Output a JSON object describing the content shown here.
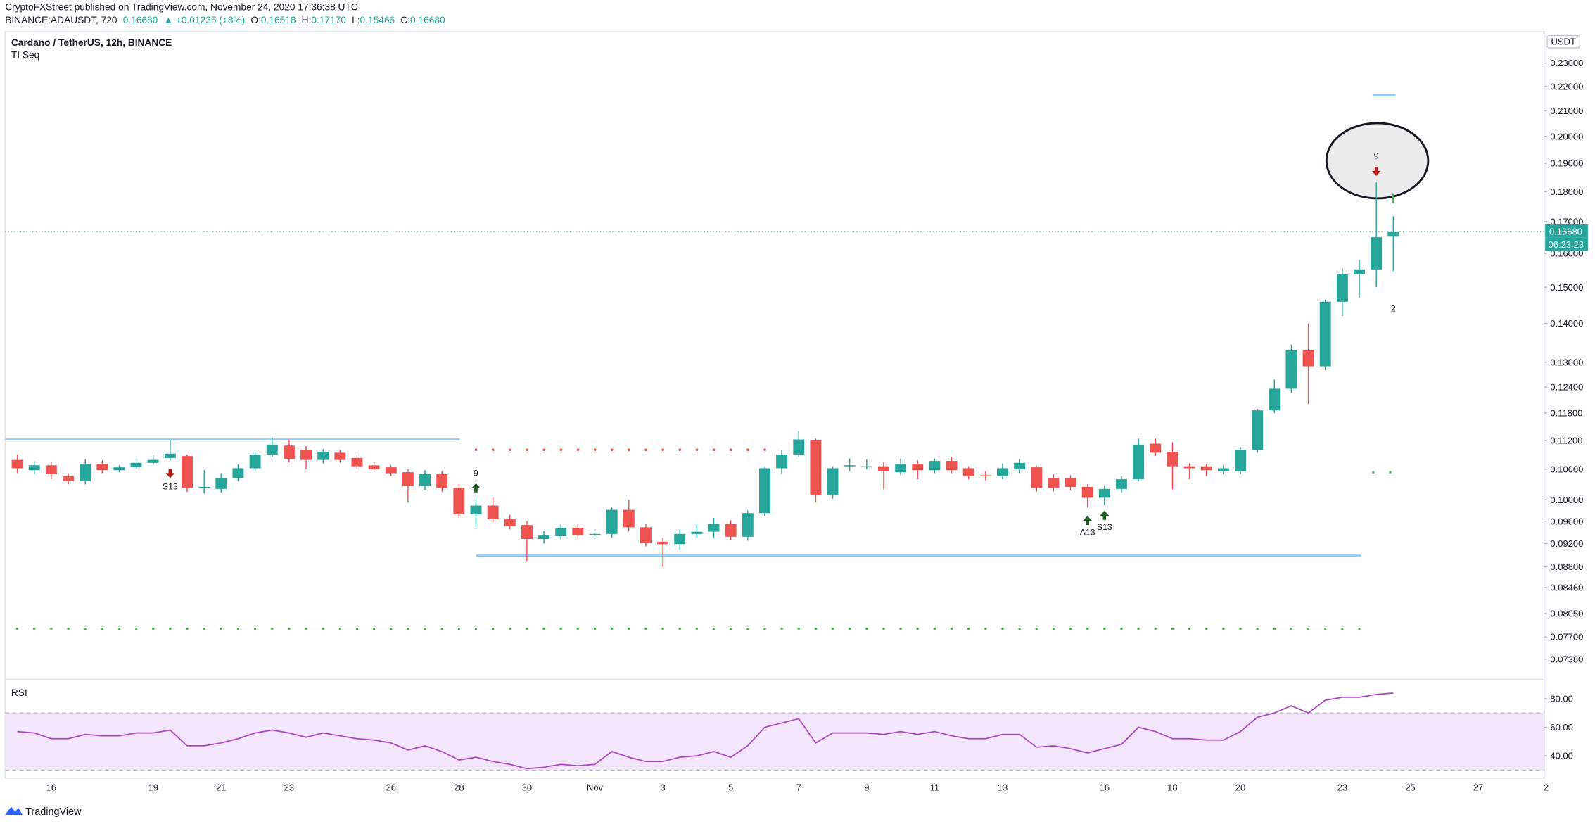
{
  "chart_data": [
    {
      "type": "candlestick",
      "title": "Cardano / TetherUS, 12h, BINANCE",
      "subtitle": "TI Seq",
      "header": {
        "author_line": "CryptoFXStreet published on TradingView.com, November 24, 2020 17:36:38 UTC",
        "symbol": "BINANCE:ADAUSDT, 720",
        "price": "0.16680",
        "change": "▲ +0.01235 (+8%)",
        "ohlc": [
          {
            "key": "O:",
            "value": "0.16518"
          },
          {
            "key": "H:",
            "value": "0.17170"
          },
          {
            "key": "L:",
            "value": "0.15466"
          },
          {
            "key": "C:",
            "value": "0.16680"
          }
        ]
      },
      "currency": "USDT",
      "last_price_label": "0.16680",
      "countdown": "06:23:23",
      "log_scale": true,
      "grid": false,
      "up_color": "#26a69a",
      "down_color": "#ef5350",
      "categories": [
        null,
        null,
        "16",
        null,
        null,
        null,
        null,
        null,
        "19",
        null,
        null,
        null,
        "21",
        null,
        null,
        null,
        "23",
        null,
        null,
        null,
        null,
        null,
        "26",
        null,
        null,
        null,
        "28",
        null,
        null,
        null,
        "30",
        null,
        null,
        null,
        "Nov",
        null,
        null,
        null,
        "3",
        null,
        null,
        null,
        "5",
        null,
        null,
        null,
        "7",
        null,
        null,
        null,
        "9",
        null,
        null,
        null,
        "11",
        null,
        null,
        null,
        "13",
        null,
        null,
        null,
        null,
        null,
        "16",
        null,
        null,
        null,
        "18",
        null,
        null,
        null,
        "20",
        null,
        null,
        null,
        null,
        null,
        "23",
        null,
        null,
        null,
        "25",
        null,
        null,
        null,
        "27",
        null,
        null,
        null,
        "2"
      ],
      "open": [
        0.1079,
        0.1058,
        0.1068,
        0.1046,
        0.1036,
        0.1071,
        0.1058,
        0.1064,
        0.1073,
        0.1083,
        0.1087,
        0.1023,
        0.1021,
        0.1042,
        0.1062,
        0.109,
        0.1109,
        0.11,
        0.1079,
        0.1094,
        0.1083,
        0.1068,
        0.1064,
        0.1054,
        0.1027,
        0.105,
        0.1023,
        0.0973,
        0.0989,
        0.0964,
        0.0953,
        0.0928,
        0.0933,
        0.0948,
        0.0935,
        0.0937,
        0.0981,
        0.0949,
        0.0923,
        0.0919,
        0.0937,
        0.0941,
        0.0955,
        0.0932,
        0.0975,
        0.1062,
        0.109,
        0.112,
        0.101,
        0.1066,
        0.1066,
        0.1066,
        0.1054,
        0.1071,
        0.1058,
        0.1077,
        0.1062,
        0.1048,
        0.1046,
        0.106,
        0.1064,
        0.1042,
        0.1042,
        0.1025,
        0.1004,
        0.1021,
        0.104,
        0.1113,
        0.1096,
        0.1066,
        0.1066,
        0.1056,
        0.1056,
        0.11,
        0.1186,
        0.1236,
        0.133,
        0.129,
        0.1459,
        0.1537,
        0.1552,
        0.16518,
        null,
        null,
        null,
        null,
        null,
        null,
        null,
        null,
        null
      ],
      "high": [
        0.109,
        0.1076,
        0.1074,
        0.1052,
        0.108,
        0.1078,
        0.1068,
        0.1082,
        0.1088,
        0.112,
        0.109,
        0.1058,
        0.1052,
        0.107,
        0.1096,
        0.1126,
        0.1122,
        0.1108,
        0.1102,
        0.11,
        0.109,
        0.1074,
        0.1068,
        0.106,
        0.1058,
        0.1056,
        0.103,
        0.1002,
        0.1004,
        0.0972,
        0.096,
        0.0942,
        0.0955,
        0.0955,
        0.0945,
        0.0986,
        0.1,
        0.0955,
        0.093,
        0.0945,
        0.0955,
        0.0966,
        0.0962,
        0.098,
        0.1066,
        0.11,
        0.114,
        0.1124,
        0.1066,
        0.1082,
        0.108,
        0.1074,
        0.1082,
        0.1078,
        0.1082,
        0.1086,
        0.1066,
        0.1056,
        0.1072,
        0.108,
        0.1066,
        0.105,
        0.1048,
        0.103,
        0.1028,
        0.1046,
        0.1124,
        0.1124,
        0.1116,
        0.1072,
        0.107,
        0.1068,
        0.1106,
        0.119,
        0.1258,
        0.1345,
        0.14,
        0.1465,
        0.1555,
        0.158,
        0.1832,
        0.1717,
        null,
        null,
        null,
        null,
        null,
        null,
        null,
        null,
        null
      ],
      "low": [
        0.1052,
        0.105,
        0.104,
        0.103,
        0.103,
        0.1052,
        0.1054,
        0.106,
        0.1068,
        0.1078,
        0.1015,
        0.1012,
        0.1014,
        0.1036,
        0.1056,
        0.1084,
        0.1074,
        0.106,
        0.1072,
        0.1074,
        0.106,
        0.1054,
        0.1046,
        0.0995,
        0.1018,
        0.1016,
        0.0966,
        0.095,
        0.0958,
        0.0945,
        0.089,
        0.092,
        0.0926,
        0.0928,
        0.0928,
        0.093,
        0.0942,
        0.0915,
        0.088,
        0.091,
        0.093,
        0.093,
        0.0926,
        0.0925,
        0.097,
        0.105,
        0.1085,
        0.0995,
        0.1002,
        0.1056,
        0.106,
        0.102,
        0.1048,
        0.104,
        0.1052,
        0.1052,
        0.104,
        0.1038,
        0.104,
        0.1052,
        0.1016,
        0.1016,
        0.1018,
        0.0985,
        0.099,
        0.1014,
        0.1036,
        0.1088,
        0.102,
        0.104,
        0.1046,
        0.105,
        0.105,
        0.1094,
        0.118,
        0.1226,
        0.12,
        0.128,
        0.142,
        0.147,
        0.15,
        0.15466,
        null,
        null,
        null,
        null,
        null,
        null,
        null,
        null,
        null
      ],
      "close": [
        0.1062,
        0.1068,
        0.105,
        0.1036,
        0.1071,
        0.1058,
        0.1064,
        0.1073,
        0.1079,
        0.1092,
        0.1023,
        0.1025,
        0.1042,
        0.1062,
        0.109,
        0.1111,
        0.1081,
        0.1079,
        0.1096,
        0.1079,
        0.1066,
        0.106,
        0.1052,
        0.1027,
        0.105,
        0.1023,
        0.0973,
        0.0989,
        0.0964,
        0.0951,
        0.0928,
        0.0935,
        0.0948,
        0.0935,
        0.0937,
        0.0981,
        0.0949,
        0.0921,
        0.0919,
        0.0937,
        0.0941,
        0.0955,
        0.0932,
        0.0975,
        0.1062,
        0.109,
        0.1122,
        0.101,
        0.1062,
        0.1068,
        0.1066,
        0.1056,
        0.1071,
        0.1058,
        0.1077,
        0.1058,
        0.1046,
        0.1046,
        0.1062,
        0.1073,
        0.1023,
        0.1023,
        0.1025,
        0.1004,
        0.1021,
        0.104,
        0.1111,
        0.1094,
        0.1066,
        0.1062,
        0.1058,
        0.1062,
        0.11,
        0.1186,
        0.1236,
        0.133,
        0.129,
        0.1459,
        0.1537,
        0.1552,
        0.165,
        0.1668,
        null,
        null,
        null,
        null,
        null,
        null,
        null,
        null,
        null
      ],
      "levels": [
        {
          "value": 0.1122,
          "color": "#90caf9",
          "style": "solid"
        },
        {
          "value": 0.0899,
          "color": "#90caf9",
          "style": "solid"
        },
        {
          "value": 0.2163,
          "color": "#90caf9",
          "style": "solid"
        },
        {
          "value": 0.11,
          "color": "#f44336",
          "style": "dotted"
        },
        {
          "value": 0.0782,
          "color": "#4caf50",
          "style": "dotted"
        },
        {
          "value": 0.1054,
          "color": "#4caf50",
          "style": "dotted"
        }
      ],
      "annotations": [
        {
          "text": "S13",
          "color": "#ff9800"
        },
        {
          "text": "9",
          "color": "#ef5350"
        },
        {
          "text": "A13",
          "color": "#2196f3"
        },
        {
          "text": "S13",
          "color": "#ff9800"
        },
        {
          "text": "9",
          "color": "#4caf50"
        },
        {
          "text": "2",
          "color": "#26a69a"
        }
      ],
      "ylim": [
        0.0714,
        0.2433
      ],
      "yticks": [
        {
          "value": 0.23,
          "label": "0.23000"
        },
        {
          "value": 0.22,
          "label": "0.22000"
        },
        {
          "value": 0.21,
          "label": "0.21000"
        },
        {
          "value": 0.2,
          "label": "0.20000"
        },
        {
          "value": 0.19,
          "label": "0.19000"
        },
        {
          "value": 0.18,
          "label": "0.18000"
        },
        {
          "value": 0.17,
          "label": "0.17000"
        },
        {
          "value": 0.16,
          "label": "0.16000"
        },
        {
          "value": 0.15,
          "label": "0.15000"
        },
        {
          "value": 0.14,
          "label": "0.14000"
        },
        {
          "value": 0.13,
          "label": "0.13000"
        },
        {
          "value": 0.124,
          "label": "0.12400"
        },
        {
          "value": 0.118,
          "label": "0.11800"
        },
        {
          "value": 0.112,
          "label": "0.11200"
        },
        {
          "value": 0.106,
          "label": "0.10600"
        },
        {
          "value": 0.1,
          "label": "0.10000"
        },
        {
          "value": 0.096,
          "label": "0.09600"
        },
        {
          "value": 0.092,
          "label": "0.09200"
        },
        {
          "value": 0.088,
          "label": "0.08800"
        },
        {
          "value": 0.0846,
          "label": "0.08460"
        },
        {
          "value": 0.0805,
          "label": "0.08050"
        },
        {
          "value": 0.077,
          "label": "0.07700"
        },
        {
          "value": 0.0738,
          "label": "0.07380"
        }
      ]
    },
    {
      "type": "line",
      "title": "RSI",
      "color": "#ab47bc",
      "band": [
        30,
        70
      ],
      "band_color": "#f3e5fb",
      "values": [
        57,
        56,
        52,
        52,
        55,
        54,
        54,
        56,
        56,
        58,
        47,
        47,
        49,
        52,
        56,
        58,
        56,
        53,
        56,
        54,
        52,
        51,
        49,
        44,
        47,
        43,
        37,
        39,
        36,
        34,
        31,
        32,
        34,
        33,
        34,
        43,
        39,
        36,
        36,
        39,
        40,
        43,
        39,
        47,
        60,
        63,
        66,
        49,
        56,
        56,
        56,
        55,
        57,
        55,
        57,
        54,
        52,
        52,
        55,
        55,
        46,
        47,
        45,
        42,
        45,
        48,
        60,
        57,
        52,
        52,
        51,
        51,
        57,
        67,
        70,
        75,
        70,
        79,
        81,
        81,
        83,
        84,
        null,
        null,
        null,
        null,
        null,
        null,
        null,
        null,
        null
      ],
      "ylim": [
        25,
        92
      ],
      "yticks": [
        {
          "value": 80,
          "label": "80.00"
        },
        {
          "value": 60,
          "label": "60.00"
        },
        {
          "value": 40,
          "label": "40.00"
        }
      ]
    }
  ],
  "footer": "TradingView"
}
